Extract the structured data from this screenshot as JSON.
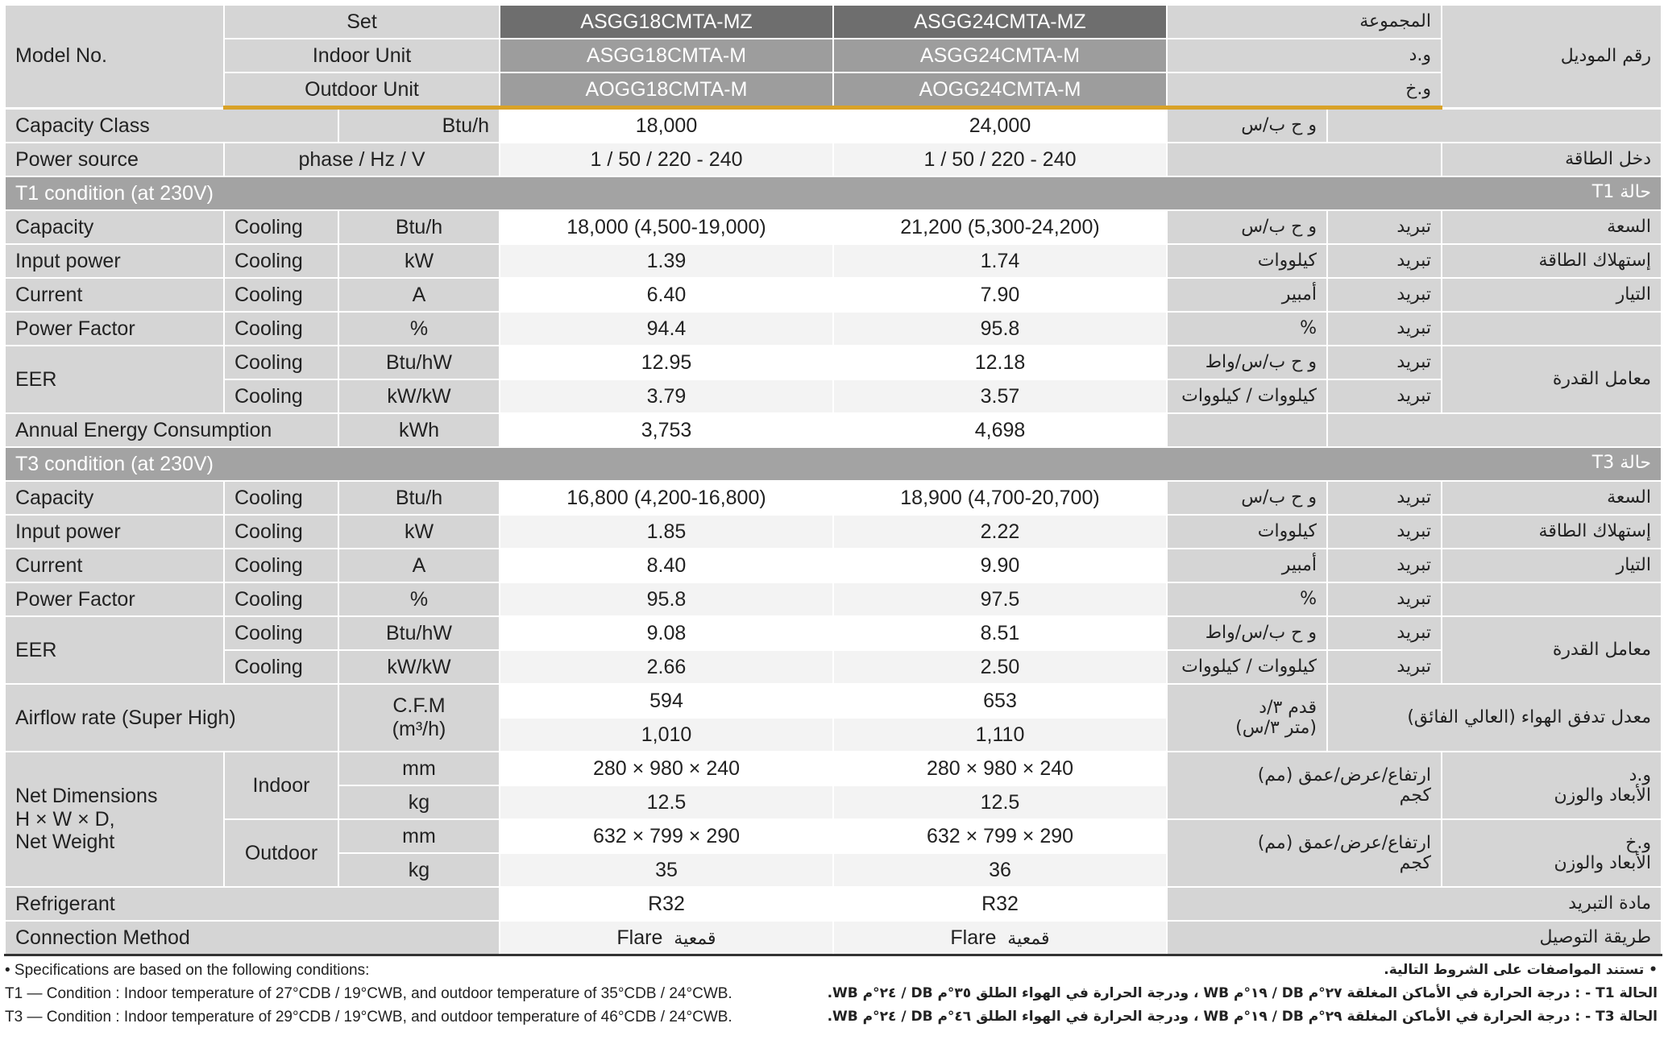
{
  "header": {
    "model_no": "Model No.",
    "set": "Set",
    "indoor_unit": "Indoor Unit",
    "outdoor_unit": "Outdoor Unit",
    "models": [
      {
        "set": "ASGG18CMTA-MZ",
        "indoor": "ASGG18CMTA-M",
        "outdoor": "AOGG18CMTA-M"
      },
      {
        "set": "ASGG24CMTA-MZ",
        "indoor": "ASGG24CMTA-M",
        "outdoor": "AOGG24CMTA-M"
      }
    ],
    "ar": {
      "set": "المجموعة",
      "indoor": "و.د",
      "outdoor": "و.خ",
      "model_no": "رقم الموديل"
    }
  },
  "capacity_class": {
    "label": "Capacity Class",
    "unit": "Btu/h",
    "values": [
      "18,000",
      "24,000"
    ],
    "ar_unit": "و ح ب/س"
  },
  "power_source": {
    "label": "Power source",
    "unit": "phase / Hz / V",
    "values": [
      "1 / 50 / 220 - 240",
      "1 / 50 / 220 - 240"
    ],
    "ar_label": "دخل الطاقة"
  },
  "common": {
    "cooling": "Cooling",
    "ar_cooling": "تبريد"
  },
  "t1": {
    "title": "T1 condition (at 230V)",
    "ar_title": "حالة T1",
    "capacity": {
      "label": "Capacity",
      "unit": "Btu/h",
      "values": [
        "18,000 (4,500-19,000)",
        "21,200 (5,300-24,200)"
      ],
      "ar_unit": "و ح ب/س",
      "ar_label": "السعة"
    },
    "input_power": {
      "label": "Input power",
      "unit": "kW",
      "values": [
        "1.39",
        "1.74"
      ],
      "ar_unit": "كيلووات",
      "ar_label": "إستهلاك الطاقة"
    },
    "current": {
      "label": "Current",
      "unit": "A",
      "values": [
        "6.40",
        "7.90"
      ],
      "ar_unit": "أمبير",
      "ar_label": "التيار"
    },
    "power_factor": {
      "label": "Power Factor",
      "unit": "%",
      "values": [
        "94.4",
        "95.8"
      ],
      "ar_unit": "%"
    },
    "eer": {
      "label": "EER",
      "ar_label": "معامل القدرة",
      "rows": [
        {
          "unit": "Btu/hW",
          "values": [
            "12.95",
            "12.18"
          ],
          "ar_unit": "و ح ب/س/واط"
        },
        {
          "unit": "kW/kW",
          "values": [
            "3.79",
            "3.57"
          ],
          "ar_unit": "كيلووات / كيلووات"
        }
      ]
    },
    "annual": {
      "label": "Annual Energy Consumption",
      "unit": "kWh",
      "values": [
        "3,753",
        "4,698"
      ]
    }
  },
  "t3": {
    "title": "T3 condition (at 230V)",
    "ar_title": "حالة T3",
    "capacity": {
      "label": "Capacity",
      "unit": "Btu/h",
      "values": [
        "16,800 (4,200-16,800)",
        "18,900 (4,700-20,700)"
      ],
      "ar_unit": "و ح ب/س",
      "ar_label": "السعة"
    },
    "input_power": {
      "label": "Input power",
      "unit": "kW",
      "values": [
        "1.85",
        "2.22"
      ],
      "ar_unit": "كيلووات",
      "ar_label": "إستهلاك الطاقة"
    },
    "current": {
      "label": "Current",
      "unit": "A",
      "values": [
        "8.40",
        "9.90"
      ],
      "ar_unit": "أمبير",
      "ar_label": "التيار"
    },
    "power_factor": {
      "label": "Power Factor",
      "unit": "%",
      "values": [
        "95.8",
        "97.5"
      ],
      "ar_unit": "%"
    },
    "eer": {
      "label": "EER",
      "ar_label": "معامل القدرة",
      "rows": [
        {
          "unit": "Btu/hW",
          "values": [
            "9.08",
            "8.51"
          ],
          "ar_unit": "و ح ب/س/واط"
        },
        {
          "unit": "kW/kW",
          "values": [
            "2.66",
            "2.50"
          ],
          "ar_unit": "كيلووات / كيلووات"
        }
      ]
    }
  },
  "airflow": {
    "label": "Airflow rate (Super High)",
    "unit_1": "C.F.M",
    "unit_2": "(m³/h)",
    "cfm": [
      "594",
      "653"
    ],
    "m3h": [
      "1,010",
      "1,110"
    ],
    "ar_unit_1": "قدم ٣/د",
    "ar_unit_2": "(متر ٣/س)",
    "ar_label": "معدل تدفق الهواء (العالي الفائق)"
  },
  "dimensions": {
    "label_1": "Net Dimensions",
    "label_2": "H × W × D,",
    "label_3": "Net Weight",
    "indoor": {
      "label": "Indoor",
      "mm": [
        "280 × 980 × 240",
        "280 × 980 × 240"
      ],
      "kg": [
        "12.5",
        "12.5"
      ],
      "ar_label_1": "و.د",
      "ar_label_2": "الأبعاد والوزن"
    },
    "outdoor": {
      "label": "Outdoor",
      "mm": [
        "632 × 799 × 290",
        "632 × 799 × 290"
      ],
      "kg": [
        "35",
        "36"
      ],
      "ar_label_1": "و.خ",
      "ar_label_2": "الأبعاد والوزن"
    },
    "unit_mm": "mm",
    "unit_kg": "kg",
    "ar_unit_mm": "ارتفاع/عرض/عمق (مم)",
    "ar_unit_kg": "كجم"
  },
  "refrigerant": {
    "label": "Refrigerant",
    "values": [
      "R32",
      "R32"
    ],
    "ar_label": "مادة التبريد"
  },
  "connection": {
    "label": "Connection Method",
    "value_en": "Flare",
    "value_ar": "قمعية",
    "ar_label": "طريقة التوصيل"
  },
  "footnotes": {
    "en": [
      "• Specifications are based on the following conditions:",
      "T1 — Condition : Indoor temperature of 27°CDB / 19°CWB, and outdoor temperature of 35°CDB / 24°CWB.",
      "T3 — Condition : Indoor temperature of 29°CDB / 19°CWB, and outdoor temperature of 46°CDB / 24°CWB."
    ],
    "ar": [
      "• تستند المواصفات على الشروط التالية.",
      "الحالة T1 - : درجة الحرارة في الأماكن المغلقة ٢٧°م DB / ١٩°م WB ، ودرجة الحرارة في الهواء الطلق ٣٥°م DB / ٢٤°م WB.",
      "الحالة T3 - : درجة الحرارة في الأماكن المغلقة ٢٩°م DB / ١٩°م WB ، ودرجة الحرارة في الهواء الطلق ٤٦°م DB / ٢٤°م WB."
    ]
  },
  "colors": {
    "accent_gold": "#d9a227",
    "header_dark": "#6e6e6e",
    "header_mid": "#9d9d9d",
    "label_gray": "#d5d5d5",
    "section_gray": "#a3a3a3"
  }
}
